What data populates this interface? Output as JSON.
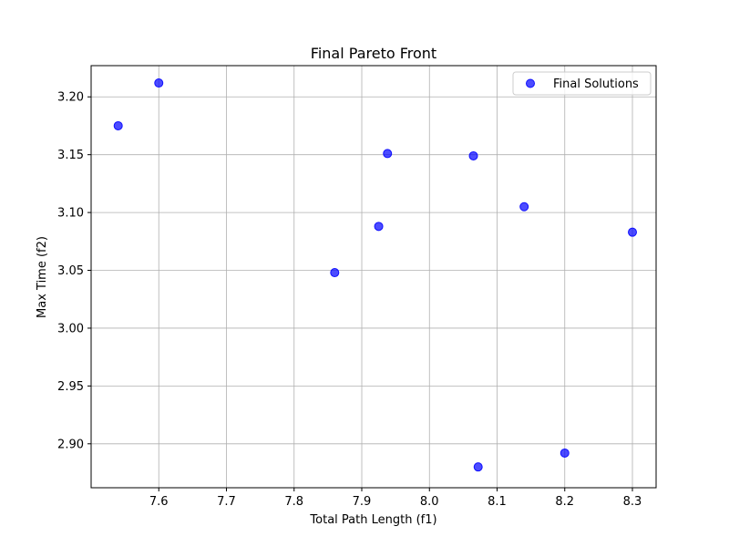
{
  "chart_data": {
    "type": "scatter",
    "title": "Final Pareto Front",
    "xlabel": "Total Path Length (f1)",
    "ylabel": "Max Time (f2)",
    "xlim": [
      7.5,
      8.335
    ],
    "ylim": [
      2.862,
      3.227
    ],
    "xticks": [
      "7.6",
      "7.7",
      "7.8",
      "7.9",
      "8.0",
      "8.1",
      "8.2",
      "8.3"
    ],
    "yticks": [
      "2.90",
      "2.95",
      "3.00",
      "3.05",
      "3.10",
      "3.15",
      "3.20"
    ],
    "grid": true,
    "legend_position": "top-right",
    "series": [
      {
        "name": "Final Solutions",
        "color": "#0000ff",
        "points": [
          {
            "x": 7.54,
            "y": 3.175
          },
          {
            "x": 7.6,
            "y": 3.212
          },
          {
            "x": 7.86,
            "y": 3.048
          },
          {
            "x": 7.925,
            "y": 3.088
          },
          {
            "x": 7.938,
            "y": 3.151
          },
          {
            "x": 8.065,
            "y": 3.149
          },
          {
            "x": 8.14,
            "y": 3.105
          },
          {
            "x": 8.3,
            "y": 3.083
          },
          {
            "x": 8.072,
            "y": 2.88
          },
          {
            "x": 8.2,
            "y": 2.892
          }
        ]
      }
    ]
  }
}
